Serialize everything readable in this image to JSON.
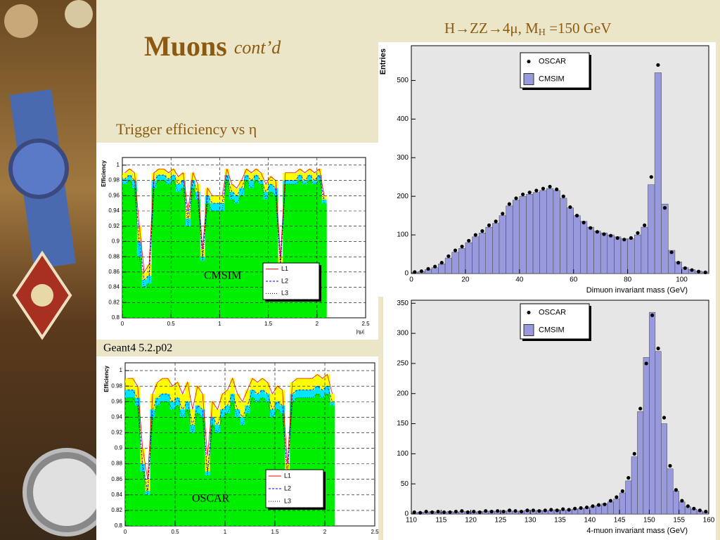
{
  "slide": {
    "title": "Muons",
    "title_suffix": "cont’d",
    "subtitle": "Trigger efficiency vs  η",
    "caption": "Geant4 5.2.p02",
    "right_heading": {
      "main": "H→ZZ→4μ, M",
      "sub": "H",
      "rest": " =150 GeV"
    }
  },
  "chart_data": [
    {
      "type": "line",
      "annotation": "CMSIM",
      "ylabel": "Efficiency",
      "xlabel": "|ημ|",
      "xlim": [
        0,
        2.5
      ],
      "xticks": [
        0,
        0.5,
        1,
        1.5,
        2,
        2.5
      ],
      "ylim": [
        0.8,
        1.01
      ],
      "yticks": [
        0.8,
        0.82,
        0.84,
        0.86,
        0.88,
        0.9,
        0.92,
        0.94,
        0.96,
        0.98,
        1
      ],
      "grid": true,
      "x": [
        0,
        0.05,
        0.1,
        0.15,
        0.2,
        0.25,
        0.3,
        0.35,
        0.4,
        0.45,
        0.5,
        0.55,
        0.6,
        0.65,
        0.7,
        0.75,
        0.8,
        0.85,
        0.9,
        0.95,
        1,
        1.05,
        1.1,
        1.15,
        1.2,
        1.25,
        1.3,
        1.35,
        1.4,
        1.45,
        1.5,
        1.55,
        1.6,
        1.65,
        1.7,
        1.75,
        1.8,
        1.85,
        1.9,
        1.95,
        2,
        2.05
      ],
      "series": [
        {
          "name": "L1",
          "color": "#ff0000",
          "fill": "#ffff00",
          "values": [
            0.99,
            0.995,
            0.99,
            0.92,
            0.86,
            0.87,
            0.99,
            0.995,
            0.995,
            0.99,
            0.995,
            0.985,
            0.99,
            0.94,
            0.99,
            0.975,
            0.89,
            0.97,
            0.96,
            0.96,
            0.96,
            0.995,
            0.975,
            0.97,
            0.98,
            0.995,
            0.99,
            0.995,
            0.99,
            0.975,
            0.985,
            0.98,
            0.88,
            0.99,
            0.99,
            0.99,
            0.995,
            0.99,
            0.995,
            0.99,
            0.995,
            0.96
          ]
        },
        {
          "name": "L2",
          "color": "#0000ff",
          "fill": "#00e5ff",
          "values": [
            0.982,
            0.987,
            0.98,
            0.9,
            0.85,
            0.855,
            0.98,
            0.987,
            0.987,
            0.982,
            0.987,
            0.975,
            0.98,
            0.93,
            0.98,
            0.965,
            0.88,
            0.96,
            0.95,
            0.95,
            0.95,
            0.987,
            0.965,
            0.96,
            0.97,
            0.987,
            0.98,
            0.987,
            0.98,
            0.965,
            0.975,
            0.97,
            0.87,
            0.98,
            0.98,
            0.98,
            0.987,
            0.98,
            0.987,
            0.98,
            0.987,
            0.955
          ]
        },
        {
          "name": "L3",
          "color": "#000000",
          "fill": "#00ee00",
          "values": [
            0.975,
            0.98,
            0.97,
            0.88,
            0.84,
            0.845,
            0.97,
            0.98,
            0.98,
            0.975,
            0.98,
            0.965,
            0.97,
            0.92,
            0.97,
            0.955,
            0.875,
            0.95,
            0.94,
            0.94,
            0.94,
            0.98,
            0.955,
            0.95,
            0.96,
            0.98,
            0.97,
            0.98,
            0.975,
            0.955,
            0.965,
            0.96,
            0.865,
            0.975,
            0.975,
            0.975,
            0.98,
            0.975,
            0.98,
            0.975,
            0.98,
            0.95
          ]
        }
      ]
    },
    {
      "type": "line",
      "annotation": "OSCAR",
      "ylabel": "Efficiency",
      "xlim": [
        0,
        2.5
      ],
      "xticks": [
        0,
        0.5,
        1,
        1.5,
        2,
        2.5
      ],
      "ylim": [
        0.8,
        1.01
      ],
      "yticks": [
        0.8,
        0.82,
        0.84,
        0.86,
        0.88,
        0.9,
        0.92,
        0.94,
        0.96,
        0.98,
        1
      ],
      "grid": true,
      "x": [
        0,
        0.05,
        0.1,
        0.15,
        0.2,
        0.25,
        0.3,
        0.35,
        0.4,
        0.45,
        0.5,
        0.55,
        0.6,
        0.65,
        0.7,
        0.75,
        0.8,
        0.85,
        0.9,
        0.95,
        1,
        1.05,
        1.1,
        1.15,
        1.2,
        1.25,
        1.3,
        1.35,
        1.4,
        1.45,
        1.5,
        1.55,
        1.6,
        1.65,
        1.7,
        1.75,
        1.8,
        1.85,
        1.9,
        1.95,
        2,
        2.05
      ],
      "series": [
        {
          "name": "L1",
          "color": "#ff0000",
          "fill": "#ffff00",
          "values": [
            0.99,
            0.99,
            0.98,
            0.9,
            0.86,
            0.97,
            0.985,
            0.99,
            0.99,
            0.98,
            0.985,
            0.97,
            0.985,
            0.95,
            0.98,
            0.97,
            0.89,
            0.96,
            0.95,
            0.97,
            0.975,
            0.99,
            0.97,
            0.96,
            0.975,
            0.99,
            0.985,
            0.99,
            0.985,
            0.97,
            0.98,
            0.975,
            0.88,
            0.985,
            0.99,
            0.99,
            0.99,
            0.99,
            0.995,
            0.99,
            0.995,
            0.97
          ]
        },
        {
          "name": "L2",
          "color": "#0000ff",
          "fill": "#00e5ff",
          "values": [
            0.975,
            0.975,
            0.965,
            0.88,
            0.845,
            0.95,
            0.965,
            0.97,
            0.97,
            0.96,
            0.965,
            0.95,
            0.96,
            0.93,
            0.955,
            0.95,
            0.87,
            0.94,
            0.93,
            0.95,
            0.955,
            0.97,
            0.95,
            0.94,
            0.955,
            0.975,
            0.97,
            0.975,
            0.97,
            0.95,
            0.96,
            0.955,
            0.865,
            0.97,
            0.975,
            0.975,
            0.975,
            0.975,
            0.98,
            0.975,
            0.98,
            0.96
          ]
        },
        {
          "name": "L3",
          "color": "#000000",
          "fill": "#00ee00",
          "values": [
            0.965,
            0.965,
            0.955,
            0.87,
            0.84,
            0.94,
            0.955,
            0.96,
            0.96,
            0.95,
            0.955,
            0.94,
            0.95,
            0.92,
            0.945,
            0.94,
            0.865,
            0.93,
            0.92,
            0.94,
            0.945,
            0.96,
            0.94,
            0.93,
            0.945,
            0.965,
            0.96,
            0.965,
            0.96,
            0.94,
            0.95,
            0.945,
            0.86,
            0.96,
            0.965,
            0.965,
            0.965,
            0.965,
            0.97,
            0.965,
            0.97,
            0.955
          ]
        }
      ]
    },
    {
      "type": "histogram",
      "xlabel": "Dimuon invariant mass (GeV)",
      "ylabel": "Entries",
      "xlim": [
        0,
        110
      ],
      "xticks": [
        0,
        20,
        40,
        60,
        80,
        100
      ],
      "ylim": [
        0,
        590
      ],
      "yticks": [
        0,
        100,
        200,
        300,
        400,
        500
      ],
      "bins": [
        0,
        2.5,
        5,
        7.5,
        10,
        12.5,
        15,
        17.5,
        20,
        22.5,
        25,
        27.5,
        30,
        32.5,
        35,
        37.5,
        40,
        42.5,
        45,
        47.5,
        50,
        52.5,
        55,
        57.5,
        60,
        62.5,
        65,
        67.5,
        70,
        72.5,
        75,
        77.5,
        80,
        82.5,
        85,
        87.5,
        90,
        92.5,
        95,
        97.5,
        100,
        102.5,
        105,
        107.5,
        110
      ],
      "series": [
        {
          "name": "OSCAR",
          "color": "#000000",
          "values": [
            4,
            6,
            12,
            18,
            28,
            45,
            60,
            70,
            85,
            100,
            110,
            125,
            135,
            155,
            180,
            195,
            205,
            210,
            215,
            220,
            225,
            218,
            200,
            172,
            150,
            132,
            118,
            108,
            102,
            98,
            92,
            88,
            92,
            105,
            125,
            250,
            540,
            170,
            55,
            28,
            14,
            9,
            5,
            3
          ]
        },
        {
          "name": "CMSIM",
          "color": "#9999dd",
          "values": [
            3,
            5,
            10,
            15,
            25,
            40,
            55,
            65,
            80,
            95,
            105,
            120,
            130,
            150,
            175,
            190,
            200,
            205,
            210,
            215,
            220,
            215,
            195,
            170,
            150,
            135,
            120,
            110,
            105,
            100,
            95,
            90,
            90,
            100,
            120,
            230,
            520,
            180,
            60,
            30,
            15,
            10,
            6,
            4
          ]
        }
      ]
    },
    {
      "type": "histogram",
      "xlabel": "4-muon invariant mass (GeV)",
      "xlim": [
        110,
        160
      ],
      "xticks": [
        110,
        115,
        120,
        125,
        130,
        135,
        140,
        145,
        150,
        155,
        160
      ],
      "ylim": [
        0,
        355
      ],
      "yticks": [
        0,
        50,
        100,
        150,
        200,
        250,
        300,
        350
      ],
      "bins": [
        110,
        111,
        112,
        113,
        114,
        115,
        116,
        117,
        118,
        119,
        120,
        121,
        122,
        123,
        124,
        125,
        126,
        127,
        128,
        129,
        130,
        131,
        132,
        133,
        134,
        135,
        136,
        137,
        138,
        139,
        140,
        141,
        142,
        143,
        144,
        145,
        146,
        147,
        148,
        149,
        150,
        151,
        152,
        153,
        154,
        155,
        156,
        157,
        158,
        159,
        160
      ],
      "series": [
        {
          "name": "OSCAR",
          "color": "#000000",
          "values": [
            3,
            2,
            4,
            3,
            4,
            3,
            3,
            4,
            5,
            3,
            4,
            3,
            5,
            4,
            5,
            4,
            6,
            5,
            4,
            6,
            6,
            5,
            6,
            7,
            6,
            8,
            7,
            9,
            10,
            11,
            13,
            15,
            16,
            22,
            28,
            38,
            60,
            100,
            175,
            250,
            330,
            275,
            160,
            80,
            40,
            22,
            13,
            9,
            6,
            4
          ]
        },
        {
          "name": "CMSIM",
          "color": "#9999dd",
          "values": [
            2,
            3,
            3,
            4,
            3,
            3,
            4,
            3,
            4,
            4,
            3,
            4,
            4,
            5,
            4,
            5,
            5,
            4,
            5,
            6,
            5,
            6,
            5,
            6,
            7,
            6,
            7,
            8,
            9,
            10,
            12,
            14,
            17,
            20,
            25,
            35,
            55,
            95,
            170,
            260,
            335,
            270,
            150,
            75,
            38,
            20,
            12,
            8,
            5,
            3
          ]
        }
      ]
    }
  ]
}
